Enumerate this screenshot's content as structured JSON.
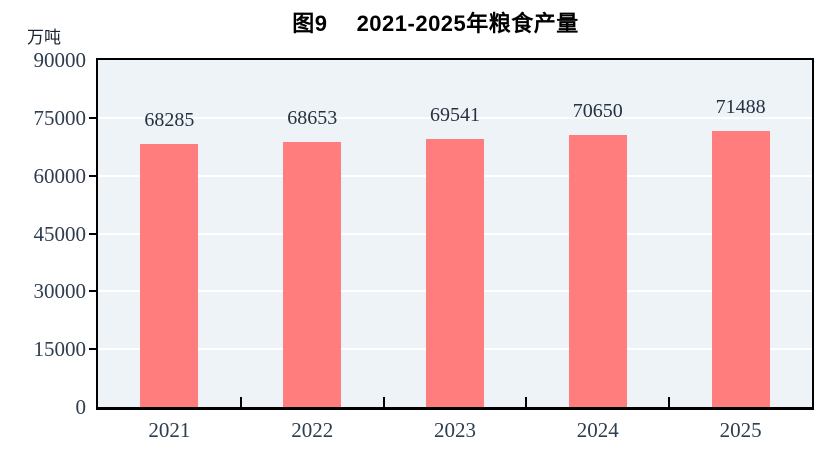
{
  "figure": {
    "title": "图9　 2021-2025年粮食产量",
    "unit_label": "万吨"
  },
  "chart_data": {
    "type": "bar",
    "title": "图9　 2021-2025年粮食产量",
    "ylabel": "万吨",
    "categories": [
      "2021",
      "2022",
      "2023",
      "2024",
      "2025"
    ],
    "values": [
      68285,
      68653,
      69541,
      70650,
      71488
    ],
    "value_labels": [
      "68285",
      "68653",
      "69541",
      "70650",
      "71488"
    ],
    "ylim": [
      0,
      90000
    ],
    "yticks": [
      0,
      15000,
      30000,
      45000,
      60000,
      75000,
      90000
    ],
    "ytick_labels": [
      "0",
      "15000",
      "30000",
      "45000",
      "60000",
      "75000",
      "90000"
    ],
    "grid": "horizontal white gridlines on shaded plot area",
    "legend": "none"
  },
  "colors": {
    "bar": "#ff7d7d",
    "plot_bg": "#edf3f7",
    "gridline": "#ffffff",
    "axis": "#000000",
    "tick_label": "#2e3d4f",
    "value_label": "#273241",
    "title": "#000000"
  }
}
